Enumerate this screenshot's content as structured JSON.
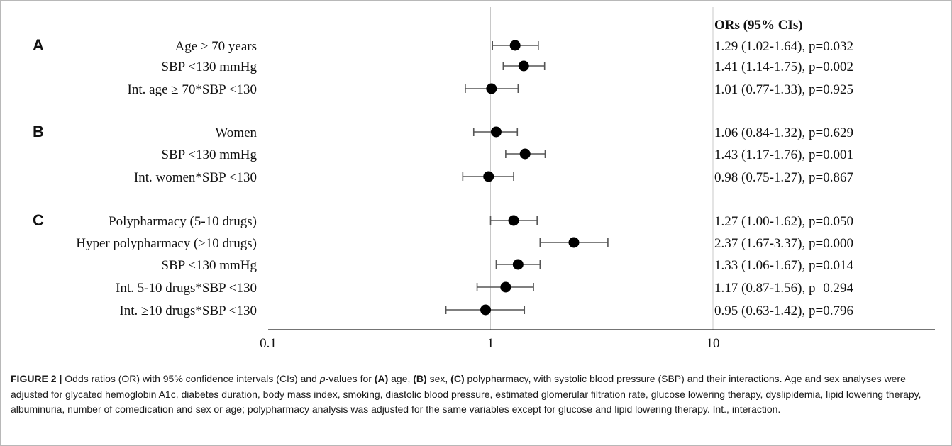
{
  "chart_data": {
    "type": "forest",
    "x_scale": "log",
    "xlim": [
      0.1,
      100
    ],
    "x_ticks": [
      "0.1",
      "1",
      "10"
    ],
    "reference_line_x": 1,
    "column_header": "ORs (95% CIs)",
    "groups": [
      {
        "letter": "A",
        "rows": [
          0,
          1,
          2
        ]
      },
      {
        "letter": "B",
        "rows": [
          3,
          4,
          5
        ]
      },
      {
        "letter": "C",
        "rows": [
          6,
          7,
          8,
          9,
          10
        ]
      }
    ],
    "rows": [
      {
        "label": "Age ≥ 70 years",
        "or": 1.29,
        "lo": 1.02,
        "hi": 1.64,
        "text": "1.29 (1.02-1.64), p=0.032"
      },
      {
        "label": "SBP <130 mmHg",
        "or": 1.41,
        "lo": 1.14,
        "hi": 1.75,
        "text": "1.41 (1.14-1.75), p=0.002"
      },
      {
        "label": "Int. age ≥ 70*SBP <130",
        "or": 1.01,
        "lo": 0.77,
        "hi": 1.33,
        "text": "1.01 (0.77-1.33), p=0.925"
      },
      {
        "label": "Women",
        "or": 1.06,
        "lo": 0.84,
        "hi": 1.32,
        "text": "1.06 (0.84-1.32), p=0.629"
      },
      {
        "label": "SBP <130 mmHg",
        "or": 1.43,
        "lo": 1.17,
        "hi": 1.76,
        "text": "1.43 (1.17-1.76), p=0.001"
      },
      {
        "label": "Int. women*SBP <130",
        "or": 0.98,
        "lo": 0.75,
        "hi": 1.27,
        "text": "0.98 (0.75-1.27), p=0.867"
      },
      {
        "label": "Polypharmacy (5-10 drugs)",
        "or": 1.27,
        "lo": 1.0,
        "hi": 1.62,
        "text": "1.27 (1.00-1.62), p=0.050"
      },
      {
        "label": "Hyper polypharmacy (≥10 drugs)",
        "or": 2.37,
        "lo": 1.67,
        "hi": 3.37,
        "text": "2.37 (1.67-3.37), p=0.000"
      },
      {
        "label": "SBP <130 mmHg",
        "or": 1.33,
        "lo": 1.06,
        "hi": 1.67,
        "text": "1.33 (1.06-1.67), p=0.014"
      },
      {
        "label": "Int. 5-10 drugs*SBP <130",
        "or": 1.17,
        "lo": 0.87,
        "hi": 1.56,
        "text": "1.17 (0.87-1.56), p=0.294"
      },
      {
        "label": "Int. ≥10 drugs*SBP <130",
        "or": 0.95,
        "lo": 0.63,
        "hi": 1.42,
        "text": "0.95 (0.63-1.42), p=0.796"
      }
    ]
  },
  "caption": {
    "label": "FIGURE 2 |",
    "t1": " Odds ratios (OR) with 95% confidence intervals (CIs) and ",
    "p_italic": "p",
    "t2": "-values for ",
    "a": "(A)",
    "t3": " age, ",
    "b": "(B)",
    "t4": " sex, ",
    "c": "(C)",
    "t5": " polypharmacy, with systolic blood pressure (SBP) and their interactions. Age and sex analyses were adjusted for glycated hemoglobin A1c, diabetes duration, body mass index, smoking, diastolic blood pressure, estimated glomerular filtration rate, glucose lowering therapy, dyslipidemia, lipid lowering therapy, albuminuria, number of comedication and sex or age; polypharmacy analysis was adjusted for the same variables except for glucose and lipid lowering therapy. Int., interaction."
  }
}
